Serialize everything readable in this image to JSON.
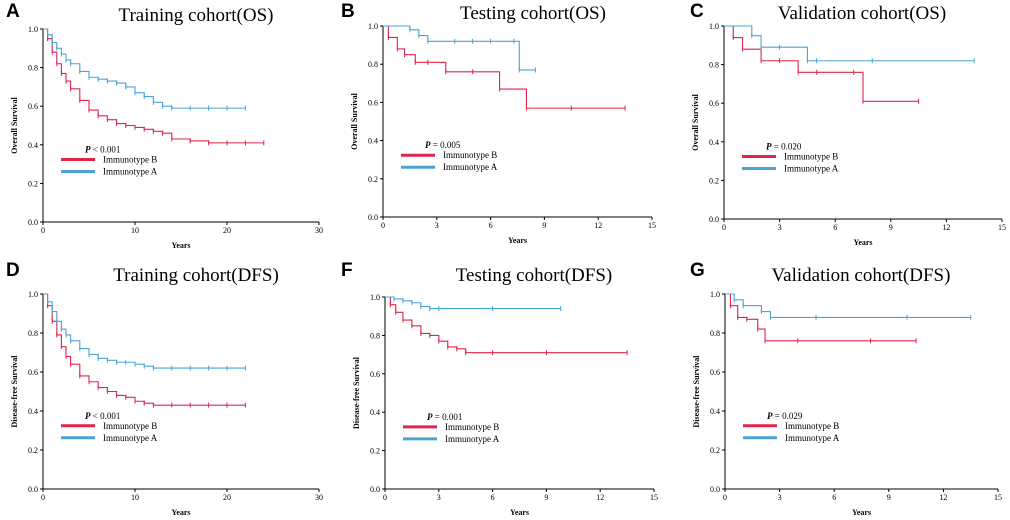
{
  "chart_data": [
    {
      "panel": "A",
      "type": "line",
      "title": "Training cohort(OS)",
      "xlabel": "Years",
      "ylabel": "Overall Survival",
      "xlim": [
        0,
        30
      ],
      "ylim": [
        0,
        1.0
      ],
      "xticks": [
        "0",
        "10",
        "20",
        "30"
      ],
      "yticks": [
        "0.0",
        "0.2",
        "0.4",
        "0.6",
        "0.8",
        "1.0"
      ],
      "pvalue": "P < 0.001",
      "legend": [
        "Immunotype B",
        "Immunotype A"
      ],
      "series": [
        {
          "name": "Immunotype B",
          "color": "#e0254b",
          "x": [
            0,
            0.5,
            1,
            1.5,
            2,
            2.5,
            3,
            4,
            5,
            6,
            7,
            8,
            9,
            10,
            11,
            12,
            13,
            14,
            16,
            18,
            20,
            22,
            24
          ],
          "y": [
            1.0,
            0.95,
            0.88,
            0.82,
            0.77,
            0.73,
            0.69,
            0.63,
            0.58,
            0.55,
            0.53,
            0.51,
            0.5,
            0.49,
            0.48,
            0.47,
            0.46,
            0.43,
            0.42,
            0.41,
            0.41,
            0.41,
            0.41
          ]
        },
        {
          "name": "Immunotype A",
          "color": "#4ba3d6",
          "x": [
            0,
            0.5,
            1,
            1.5,
            2,
            2.5,
            3,
            4,
            5,
            6,
            7,
            8,
            9,
            10,
            11,
            12,
            13,
            14,
            16,
            18,
            20,
            22
          ],
          "y": [
            1.0,
            0.97,
            0.93,
            0.9,
            0.87,
            0.84,
            0.82,
            0.78,
            0.75,
            0.74,
            0.73,
            0.72,
            0.7,
            0.67,
            0.65,
            0.62,
            0.6,
            0.59,
            0.59,
            0.59,
            0.59,
            0.59
          ]
        }
      ]
    },
    {
      "panel": "B",
      "type": "line",
      "title": "Testing cohort(OS)",
      "xlabel": "Years",
      "ylabel": "Overall Survival",
      "xlim": [
        0,
        15
      ],
      "ylim": [
        0,
        1.0
      ],
      "xticks": [
        "0",
        "3",
        "6",
        "9",
        "12",
        "15"
      ],
      "yticks": [
        "0.0",
        "0.2",
        "0.4",
        "0.6",
        "0.8",
        "1.0"
      ],
      "pvalue": "P = 0.005",
      "legend": [
        "Immunotype B",
        "Immunotype A"
      ],
      "series": [
        {
          "name": "Immunotype B",
          "color": "#e0254b",
          "x": [
            0,
            0.3,
            0.8,
            1.2,
            1.8,
            2.5,
            3.5,
            5.0,
            6.5,
            8.0,
            10.5,
            13.5
          ],
          "y": [
            1.0,
            0.94,
            0.88,
            0.85,
            0.81,
            0.81,
            0.76,
            0.76,
            0.67,
            0.57,
            0.57,
            0.57
          ]
        },
        {
          "name": "Immunotype A",
          "color": "#4ba3d6",
          "x": [
            0,
            1.5,
            2.0,
            2.5,
            4,
            5,
            6,
            7.3,
            7.6,
            8.5
          ],
          "y": [
            1.0,
            0.98,
            0.95,
            0.92,
            0.92,
            0.92,
            0.92,
            0.92,
            0.77,
            0.77
          ]
        }
      ]
    },
    {
      "panel": "C",
      "type": "line",
      "title": "Validation cohort(OS)",
      "xlabel": "Years",
      "ylabel": "Overall Survival",
      "xlim": [
        0,
        15
      ],
      "ylim": [
        0,
        1.0
      ],
      "xticks": [
        "0",
        "3",
        "6",
        "9",
        "12",
        "15"
      ],
      "yticks": [
        "0.0",
        "0.2",
        "0.4",
        "0.6",
        "0.8",
        "1.0"
      ],
      "pvalue": "P = 0.020",
      "legend": [
        "Immunotype B",
        "Immunotype A"
      ],
      "series": [
        {
          "name": "Immunotype B",
          "color": "#e0254b",
          "x": [
            0,
            0.5,
            1.0,
            2.0,
            3.0,
            4.0,
            5.0,
            7.0,
            7.5,
            10.5
          ],
          "y": [
            1.0,
            0.94,
            0.88,
            0.82,
            0.82,
            0.76,
            0.76,
            0.76,
            0.61,
            0.61
          ]
        },
        {
          "name": "Immunotype A",
          "color": "#4ba3d6",
          "x": [
            0,
            1.5,
            2.0,
            3.0,
            4.5,
            5.0,
            8.0,
            13.5
          ],
          "y": [
            1.0,
            0.95,
            0.89,
            0.89,
            0.82,
            0.82,
            0.82,
            0.82
          ]
        }
      ]
    },
    {
      "panel": "D",
      "type": "line",
      "title": "Training cohort(DFS)",
      "xlabel": "Years",
      "ylabel": "Disease-free Survival",
      "xlim": [
        0,
        30
      ],
      "ylim": [
        0,
        1.0
      ],
      "xticks": [
        "0",
        "10",
        "20",
        "30"
      ],
      "yticks": [
        "0.0",
        "0.2",
        "0.4",
        "0.6",
        "0.8",
        "1.0"
      ],
      "pvalue": "P < 0.001",
      "legend": [
        "Immunotype B",
        "Immunotype A"
      ],
      "series": [
        {
          "name": "Immunotype B",
          "color": "#e0254b",
          "x": [
            0,
            0.5,
            1,
            1.5,
            2,
            2.5,
            3,
            4,
            5,
            6,
            7,
            8,
            9,
            10,
            11,
            12,
            14,
            16,
            18,
            20,
            22
          ],
          "y": [
            1.0,
            0.94,
            0.86,
            0.79,
            0.73,
            0.68,
            0.64,
            0.58,
            0.55,
            0.52,
            0.5,
            0.48,
            0.47,
            0.45,
            0.44,
            0.43,
            0.43,
            0.43,
            0.43,
            0.43,
            0.43
          ]
        },
        {
          "name": "Immunotype A",
          "color": "#4ba3d6",
          "x": [
            0,
            0.5,
            1,
            1.5,
            2,
            2.5,
            3,
            4,
            5,
            6,
            7,
            8,
            9,
            10,
            11,
            12,
            14,
            16,
            18,
            20,
            22
          ],
          "y": [
            1.0,
            0.96,
            0.91,
            0.86,
            0.82,
            0.79,
            0.76,
            0.72,
            0.69,
            0.67,
            0.66,
            0.65,
            0.65,
            0.64,
            0.63,
            0.62,
            0.62,
            0.62,
            0.62,
            0.62,
            0.62
          ]
        }
      ]
    },
    {
      "panel": "F",
      "type": "line",
      "title": "Testing cohort(DFS)",
      "xlabel": "Years",
      "ylabel": "Disease-free Survival",
      "xlim": [
        0,
        15
      ],
      "ylim": [
        0,
        1.0
      ],
      "xticks": [
        "0",
        "3",
        "6",
        "9",
        "12",
        "15"
      ],
      "yticks": [
        "0.0",
        "0.2",
        "0.4",
        "0.6",
        "0.8",
        "1.0"
      ],
      "pvalue": "P = 0.001",
      "legend": [
        "Immunotype B",
        "Immunotype A"
      ],
      "series": [
        {
          "name": "Immunotype B",
          "color": "#e0254b",
          "x": [
            0,
            0.3,
            0.6,
            1.0,
            1.5,
            2.0,
            2.5,
            3.0,
            3.5,
            4.0,
            4.5,
            6,
            9,
            13.5
          ],
          "y": [
            1.0,
            0.96,
            0.92,
            0.88,
            0.85,
            0.81,
            0.8,
            0.77,
            0.74,
            0.73,
            0.71,
            0.71,
            0.71,
            0.71
          ]
        },
        {
          "name": "Immunotype A",
          "color": "#4ba3d6",
          "x": [
            0,
            0.5,
            1.0,
            1.5,
            2.0,
            2.5,
            3.0,
            6,
            9.8
          ],
          "y": [
            1.0,
            0.99,
            0.98,
            0.97,
            0.95,
            0.94,
            0.94,
            0.94,
            0.94
          ]
        }
      ]
    },
    {
      "panel": "G",
      "type": "line",
      "title": "Validation cohort(DFS)",
      "xlabel": "Years",
      "ylabel": "Disease-free Survival",
      "xlim": [
        0,
        15
      ],
      "ylim": [
        0,
        1.0
      ],
      "xticks": [
        "0",
        "3",
        "6",
        "9",
        "12",
        "15"
      ],
      "yticks": [
        "0.0",
        "0.2",
        "0.4",
        "0.6",
        "0.8",
        "1.0"
      ],
      "pvalue": "P = 0.029",
      "legend": [
        "Immunotype B",
        "Immunotype A"
      ],
      "series": [
        {
          "name": "Immunotype B",
          "color": "#e0254b",
          "x": [
            0,
            0.3,
            0.7,
            1.2,
            1.8,
            2.2,
            4,
            8,
            10.5
          ],
          "y": [
            1.0,
            0.94,
            0.88,
            0.87,
            0.82,
            0.76,
            0.76,
            0.76,
            0.76
          ]
        },
        {
          "name": "Immunotype A",
          "color": "#4ba3d6",
          "x": [
            0,
            0.5,
            1.0,
            2.0,
            2.5,
            5,
            10,
            13.5
          ],
          "y": [
            1.0,
            0.97,
            0.94,
            0.91,
            0.88,
            0.88,
            0.88,
            0.88
          ]
        }
      ]
    }
  ]
}
